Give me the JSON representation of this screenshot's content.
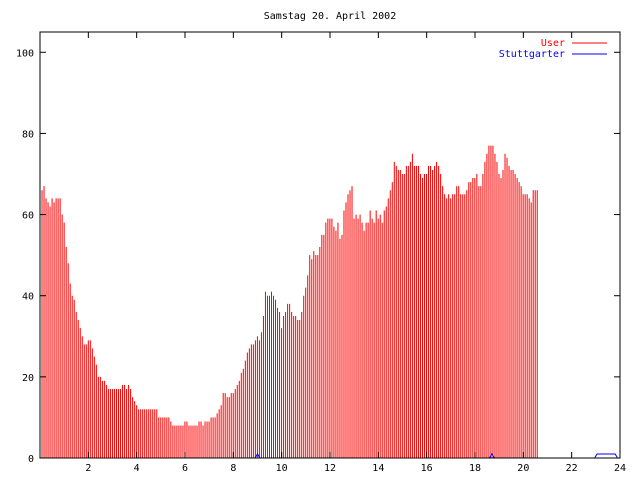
{
  "chart_data": {
    "type": "bar",
    "title": "Samstag 20. April 2002",
    "xlabel": "",
    "ylabel": "",
    "xlim": [
      0,
      24
    ],
    "ylim": [
      0,
      105
    ],
    "x_ticks": [
      2,
      4,
      6,
      8,
      10,
      12,
      14,
      16,
      18,
      20,
      22,
      24
    ],
    "y_ticks": [
      0,
      20,
      40,
      60,
      80,
      100
    ],
    "grid": false,
    "legend_position": "top-right",
    "series_interval_hours": 0.0833,
    "series": [
      {
        "name": "User",
        "color": "#ff0000",
        "style": "impulses",
        "values": [
          63,
          66,
          67,
          64,
          63,
          62,
          64,
          63,
          64,
          64,
          64,
          60,
          58,
          52,
          48,
          43,
          40,
          39,
          36,
          34,
          32,
          30,
          28,
          28,
          29,
          29,
          27,
          25,
          23,
          20,
          20,
          19,
          19,
          18,
          17,
          17,
          17,
          17,
          17,
          17,
          17,
          18,
          18,
          17,
          18,
          17,
          15,
          14,
          13,
          12,
          12,
          12,
          12,
          12,
          12,
          12,
          12,
          12,
          12,
          10,
          10,
          10,
          10,
          10,
          10,
          9,
          8,
          8,
          8,
          8,
          8,
          8,
          9,
          9,
          8,
          8,
          8,
          8,
          8,
          9,
          9,
          8,
          9,
          9,
          9,
          10,
          10,
          10,
          11,
          12,
          13,
          16,
          16,
          15,
          15,
          16,
          16,
          17,
          18,
          19,
          21,
          22,
          24,
          26,
          27,
          28,
          28,
          29,
          30,
          29,
          31,
          35,
          41,
          40,
          40,
          41,
          40,
          39,
          37,
          36,
          32,
          35,
          36,
          38,
          38,
          36,
          35,
          35,
          34,
          34,
          36,
          40,
          42,
          45,
          50,
          49,
          51,
          50,
          50,
          52,
          55,
          55,
          58,
          59,
          59,
          59,
          57,
          56,
          58,
          54,
          55,
          61,
          63,
          65,
          66,
          67,
          59,
          60,
          59,
          60,
          58,
          56,
          58,
          58,
          61,
          59,
          58,
          61,
          59,
          60,
          58,
          61,
          62,
          64,
          66,
          68,
          73,
          72,
          71,
          71,
          70,
          70,
          72,
          72,
          73,
          75,
          72,
          72,
          72,
          70,
          69,
          70,
          70,
          72,
          72,
          71,
          72,
          73,
          72,
          70,
          67,
          65,
          64,
          65,
          64,
          65,
          65,
          67,
          67,
          65,
          65,
          65,
          66,
          68,
          68,
          69,
          69,
          70,
          67,
          67,
          70,
          73,
          75,
          77,
          77,
          77,
          75,
          73,
          70,
          69,
          71,
          75,
          74,
          72,
          71,
          71,
          70,
          69,
          68,
          67,
          65,
          65,
          65,
          64,
          63,
          66,
          66,
          66
        ]
      },
      {
        "name": "Stuttgarter",
        "color": "#0000ff",
        "style": "line",
        "points": [
          [
            0,
            0
          ],
          [
            8.9,
            0
          ],
          [
            9.0,
            1
          ],
          [
            9.1,
            0
          ],
          [
            18.6,
            0
          ],
          [
            18.7,
            1
          ],
          [
            18.8,
            0
          ],
          [
            22.95,
            0
          ],
          [
            23.05,
            1
          ],
          [
            23.8,
            1
          ],
          [
            23.9,
            0
          ],
          [
            24,
            0
          ]
        ]
      }
    ]
  }
}
